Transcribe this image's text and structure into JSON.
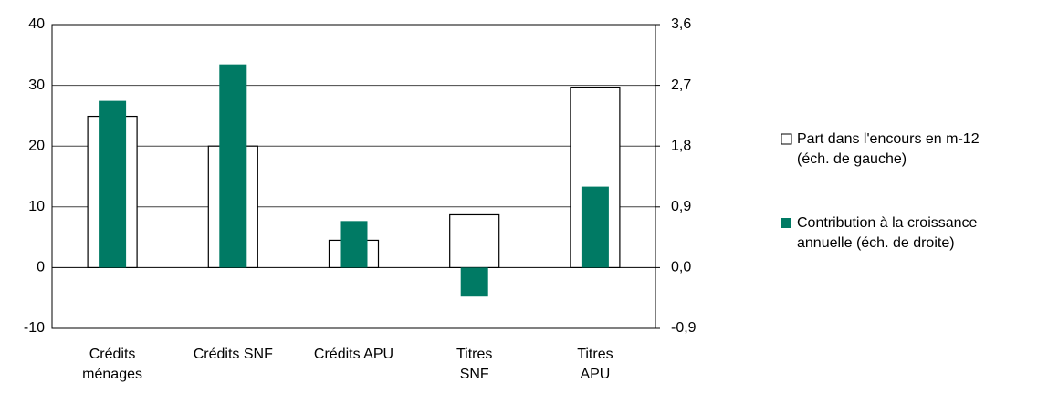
{
  "chart_data": {
    "type": "bar",
    "categories": [
      "Crédits\nménages",
      "Crédits SNF",
      "Crédits APU",
      "Titres\nSNF",
      "Titres\nAPU"
    ],
    "series": [
      {
        "name": "Part dans l'encours en m-12\n(éch. de gauche)",
        "color": "#ffffff",
        "values": [
          24.9,
          20,
          4.5,
          8.7,
          29.7
        ]
      },
      {
        "name": "Contribution à la croissance\nannuelle (éch. de droite)",
        "color": "#007a64",
        "axis": "y2",
        "values": [
          2.47,
          3.01,
          0.69,
          -0.43,
          1.2
        ]
      }
    ],
    "ylim": [
      -10,
      40
    ],
    "yticks": [
      -10,
      0,
      10,
      20,
      30,
      40
    ],
    "y2lim": [
      -0.9,
      3.6
    ],
    "y2ticks": [
      {
        "value": -0.9,
        "label": "-0,9"
      },
      {
        "value": 0,
        "label": "0,0"
      },
      {
        "value": 0.9,
        "label": "0,9"
      },
      {
        "value": 1.8,
        "label": "1,8"
      },
      {
        "value": 2.7,
        "label": "2,7"
      },
      {
        "value": 3.6,
        "label": "3,6"
      }
    ],
    "grid": true,
    "legend": "right"
  }
}
